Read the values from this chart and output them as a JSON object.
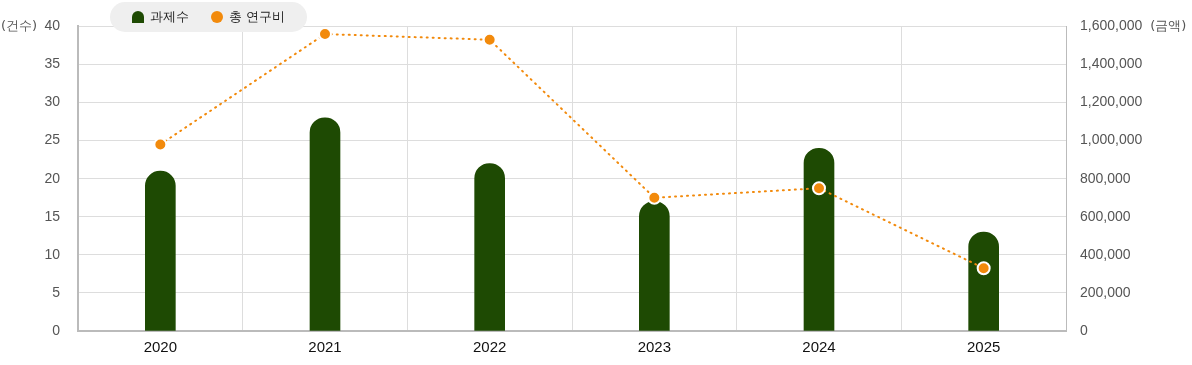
{
  "chart_data": {
    "type": "bar",
    "ylabel": "(건수)",
    "y2label": "(금액)",
    "categories": [
      "2020",
      "2021",
      "2022",
      "2023",
      "2024",
      "2025"
    ],
    "series": [
      {
        "name": "과제수",
        "color": "#1e4a03",
        "values": [
          21,
          28,
          22,
          17,
          24,
          13
        ]
      },
      {
        "name": "총 연구비",
        "type": "line",
        "axis": "y2",
        "color": "#f28a0c",
        "line_style": "dotted",
        "marker": "circle",
        "values": [
          980000,
          1560000,
          1530000,
          700000,
          750000,
          330000
        ]
      }
    ],
    "ylim": [
      0,
      40
    ],
    "yticks": [
      0,
      5,
      10,
      15,
      20,
      25,
      30,
      35,
      40
    ],
    "y2lim": [
      0,
      1600000
    ],
    "y2ticks": [
      0,
      {
        "value": 200000,
        "label": "200,000"
      },
      {
        "value": 400000,
        "label": "400,000"
      },
      {
        "value": 600000,
        "label": "600,000"
      },
      {
        "value": 800000,
        "label": "800,000"
      },
      {
        "value": 1000000,
        "label": "1,000,000"
      },
      {
        "value": 1200000,
        "label": "1,200,000"
      },
      {
        "value": 1400000,
        "label": "1,400,000"
      },
      {
        "value": 1600000,
        "label": "1,600,000"
      }
    ],
    "grid": true,
    "legend": "top left"
  }
}
